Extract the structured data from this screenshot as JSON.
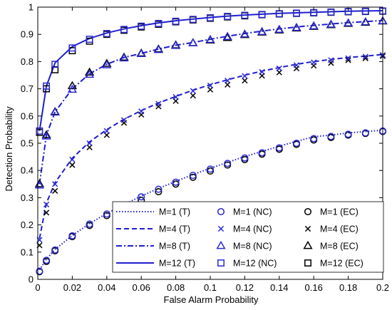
{
  "chart_data": {
    "type": "line",
    "title": "",
    "xlabel": "False Alarm Probability",
    "ylabel": "Detection Probability",
    "xlim": [
      0,
      0.2
    ],
    "ylim": [
      0,
      1
    ],
    "xticks": [
      0,
      0.02,
      0.04,
      0.06,
      0.08,
      0.1,
      0.12,
      0.14,
      0.16,
      0.18,
      0.2
    ],
    "xtick_labels": [
      "0",
      "0.02",
      "0.04",
      "0.06",
      "0.08",
      "0.1",
      "0.12",
      "0.14",
      "0.16",
      "0.18",
      "0.2"
    ],
    "yticks": [
      0,
      0.1,
      0.2,
      0.3,
      0.4,
      0.5,
      0.6,
      0.7,
      0.8,
      0.9,
      1
    ],
    "ytick_labels": [
      "0",
      "0.1",
      "0.2",
      "0.3",
      "0.4",
      "0.5",
      "0.6",
      "0.7",
      "0.8",
      "0.9",
      "1"
    ],
    "grid": false,
    "legend_position": "bottom-right",
    "colors": {
      "theory": "#1f1fd1",
      "nc": "#2a2ad6",
      "ec": "#000000",
      "axis": "#000000"
    },
    "x": [
      0.001,
      0.005,
      0.01,
      0.02,
      0.03,
      0.04,
      0.05,
      0.06,
      0.07,
      0.08,
      0.09,
      0.1,
      0.11,
      0.12,
      0.13,
      0.14,
      0.15,
      0.16,
      0.17,
      0.18,
      0.19,
      0.2
    ],
    "series": [
      {
        "name": "M=1 (T)",
        "group": "M=1",
        "kind": "theory",
        "dash": "dotted",
        "values": [
          0.035,
          0.074,
          0.11,
          0.161,
          0.205,
          0.242,
          0.275,
          0.306,
          0.334,
          0.36,
          0.385,
          0.408,
          0.43,
          0.451,
          0.47,
          0.489,
          0.507,
          0.524,
          0.53,
          0.538,
          0.543,
          0.548
        ]
      },
      {
        "name": "M=1 (NC)",
        "group": "M=1",
        "kind": "nc",
        "marker": "circle",
        "values": [
          0.03,
          0.07,
          0.108,
          0.16,
          0.203,
          0.24,
          0.272,
          0.303,
          0.331,
          0.357,
          0.382,
          0.405,
          0.426,
          0.446,
          0.465,
          0.483,
          0.5,
          0.517,
          0.525,
          0.533,
          0.538,
          0.545
        ]
      },
      {
        "name": "M=1 (EC)",
        "group": "M=1",
        "kind": "ec",
        "marker": "circle",
        "values": [
          0.028,
          0.066,
          0.105,
          0.157,
          0.198,
          0.234,
          0.262,
          0.29,
          0.322,
          0.35,
          0.375,
          0.398,
          0.42,
          0.44,
          0.46,
          0.478,
          0.496,
          0.512,
          0.521,
          0.53,
          0.536,
          0.543
        ]
      },
      {
        "name": "M=4 (T)",
        "group": "M=4",
        "kind": "theory",
        "dash": "dashed",
        "values": [
          0.15,
          0.28,
          0.355,
          0.445,
          0.505,
          0.55,
          0.588,
          0.62,
          0.648,
          0.672,
          0.695,
          0.715,
          0.733,
          0.75,
          0.765,
          0.778,
          0.79,
          0.8,
          0.808,
          0.815,
          0.82,
          0.826
        ]
      },
      {
        "name": "M=4 (NC)",
        "group": "M=4",
        "kind": "nc",
        "marker": "x",
        "values": [
          0.145,
          0.275,
          0.35,
          0.44,
          0.5,
          0.545,
          0.585,
          0.617,
          0.645,
          0.67,
          0.692,
          0.712,
          0.73,
          0.747,
          0.762,
          0.775,
          0.787,
          0.797,
          0.805,
          0.812,
          0.818,
          0.824
        ]
      },
      {
        "name": "M=4 (EC)",
        "group": "M=4",
        "kind": "ec",
        "marker": "x",
        "values": [
          0.125,
          0.245,
          0.325,
          0.42,
          0.485,
          0.53,
          0.575,
          0.605,
          0.635,
          0.655,
          0.675,
          0.697,
          0.715,
          0.73,
          0.748,
          0.76,
          0.775,
          0.785,
          0.795,
          0.805,
          0.812,
          0.82
        ]
      },
      {
        "name": "M=8 (T)",
        "group": "M=8",
        "kind": "theory",
        "dash": "dashdot",
        "values": [
          0.35,
          0.53,
          0.615,
          0.7,
          0.755,
          0.79,
          0.815,
          0.83,
          0.846,
          0.86,
          0.87,
          0.882,
          0.893,
          0.903,
          0.912,
          0.92,
          0.927,
          0.933,
          0.938,
          0.943,
          0.947,
          0.951
        ]
      },
      {
        "name": "M=8 (NC)",
        "group": "M=8",
        "kind": "nc",
        "marker": "triangle",
        "values": [
          0.345,
          0.525,
          0.613,
          0.697,
          0.752,
          0.787,
          0.812,
          0.828,
          0.843,
          0.858,
          0.868,
          0.88,
          0.891,
          0.9,
          0.909,
          0.917,
          0.924,
          0.93,
          0.936,
          0.941,
          0.945,
          0.949
        ]
      },
      {
        "name": "M=8 (EC)",
        "group": "M=8",
        "kind": "ec",
        "marker": "triangle",
        "values": [
          0.35,
          0.53,
          0.615,
          0.71,
          0.76,
          0.792,
          0.815,
          0.83,
          0.845,
          0.86,
          0.868,
          0.878,
          0.887,
          0.898,
          0.907,
          0.915,
          0.922,
          0.928,
          0.934,
          0.939,
          0.943,
          0.948
        ]
      },
      {
        "name": "M=12 (T)",
        "group": "M=12",
        "kind": "theory",
        "dash": "solid",
        "values": [
          0.545,
          0.71,
          0.795,
          0.855,
          0.885,
          0.905,
          0.92,
          0.932,
          0.942,
          0.95,
          0.956,
          0.962,
          0.967,
          0.971,
          0.974,
          0.977,
          0.979,
          0.981,
          0.983,
          0.985,
          0.986,
          0.987
        ]
      },
      {
        "name": "M=12 (NC)",
        "group": "M=12",
        "kind": "nc",
        "marker": "square",
        "values": [
          0.545,
          0.71,
          0.79,
          0.85,
          0.882,
          0.903,
          0.918,
          0.93,
          0.94,
          0.948,
          0.955,
          0.961,
          0.966,
          0.97,
          0.973,
          0.976,
          0.978,
          0.98,
          0.982,
          0.984,
          0.985,
          0.986
        ]
      },
      {
        "name": "M=12 (EC)",
        "group": "M=12",
        "kind": "ec",
        "marker": "square",
        "values": [
          0.54,
          0.7,
          0.77,
          0.84,
          0.875,
          0.9,
          0.915,
          0.927,
          0.937,
          0.946,
          0.953,
          0.959,
          0.964,
          0.968,
          0.972,
          0.975,
          0.977,
          0.979,
          0.981,
          0.983,
          0.984,
          0.985
        ]
      }
    ]
  }
}
